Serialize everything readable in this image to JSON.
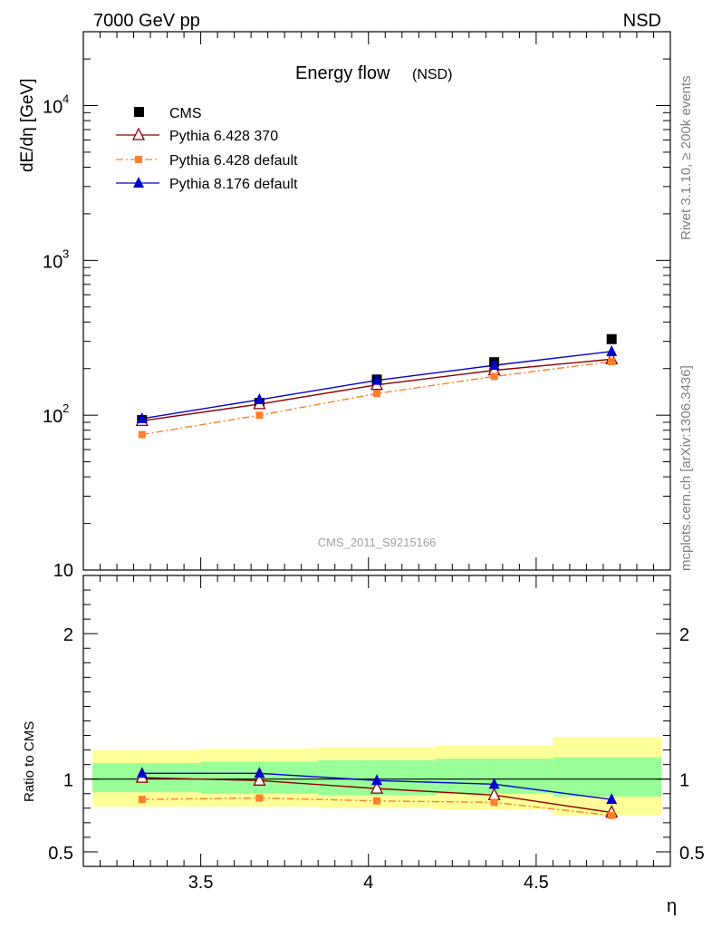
{
  "header": {
    "left": "7000 GeV pp",
    "right": "NSD"
  },
  "side_labels": {
    "rivet": "Rivet 3.1.10, ≥ 200k events",
    "mcplots": "mcplots.cern.ch [arXiv:1306.3436]"
  },
  "colors": {
    "cms": "#000000",
    "py6_370": "#8b0000",
    "py6_def": "#ff7f2a",
    "py8": "#0000cc",
    "band_inner": "#99ff99",
    "band_outer": "#ffff99"
  },
  "chart_data": [
    {
      "type": "line",
      "title": "Energy flow",
      "title_suffix": "(NSD)",
      "ylabel": "dE/dη [GeV]",
      "xlabel": "η",
      "yscale": "log",
      "xlim": [
        3.15,
        4.9
      ],
      "ylim": [
        10,
        30000
      ],
      "analysis_label": "CMS_2011_S9215166",
      "y_tick_labels": [
        {
          "value": 10,
          "base": "10",
          "exp": ""
        },
        {
          "value": 100,
          "base": "10",
          "exp": "2"
        },
        {
          "value": 1000,
          "base": "10",
          "exp": "3"
        },
        {
          "value": 10000,
          "base": "10",
          "exp": "4"
        }
      ],
      "x": [
        3.325,
        3.675,
        4.025,
        4.375,
        4.725
      ],
      "series": [
        {
          "name": "CMS",
          "key": "cms",
          "marker": "square",
          "values": [
            93,
            120,
            170,
            220,
            310
          ]
        },
        {
          "name": "Pythia 6.428 370",
          "key": "py6_370",
          "marker": "open-triangle",
          "line": "solid",
          "values": [
            92,
            118,
            157,
            195,
            230
          ]
        },
        {
          "name": "Pythia 6.428 default",
          "key": "py6_def",
          "marker": "small-square",
          "line": "dashdot",
          "values": [
            75,
            100,
            138,
            178,
            222
          ]
        },
        {
          "name": "Pythia 8.176 default",
          "key": "py8",
          "marker": "triangle",
          "line": "solid",
          "values": [
            95,
            126,
            168,
            210,
            258
          ]
        }
      ]
    },
    {
      "type": "line",
      "ylabel": "Ratio to CMS",
      "xlabel": "η",
      "xlim": [
        3.15,
        4.9
      ],
      "ylim": [
        0.4,
        2.4
      ],
      "y_tick_labels": [
        {
          "value": 0.5,
          "label": "0.5"
        },
        {
          "value": 1,
          "label": "1"
        },
        {
          "value": 2,
          "label": "2"
        }
      ],
      "x_tick_labels": [
        {
          "value": 3.5,
          "label": "3.5"
        },
        {
          "value": 4,
          "label": "4"
        },
        {
          "value": 4.5,
          "label": "4.5"
        }
      ],
      "bins": [
        {
          "lo": 3.15,
          "hi": 3.5,
          "inner": [
            0.91,
            1.11
          ],
          "outer": [
            0.81,
            1.2
          ]
        },
        {
          "lo": 3.5,
          "hi": 3.85,
          "inner": [
            0.9,
            1.12
          ],
          "outer": [
            0.81,
            1.21
          ]
        },
        {
          "lo": 3.85,
          "hi": 4.2,
          "inner": [
            0.89,
            1.13
          ],
          "outer": [
            0.8,
            1.22
          ]
        },
        {
          "lo": 4.2,
          "hi": 4.55,
          "inner": [
            0.9,
            1.14
          ],
          "outer": [
            0.79,
            1.23
          ]
        },
        {
          "lo": 4.55,
          "hi": 4.9,
          "inner": [
            0.88,
            1.15
          ],
          "outer": [
            0.75,
            1.29
          ]
        }
      ],
      "x": [
        3.325,
        3.675,
        4.025,
        4.375,
        4.725
      ],
      "series": [
        {
          "name": "Pythia 6.428 370",
          "key": "py6_370",
          "marker": "open-triangle",
          "line": "solid",
          "values": [
            1.01,
            0.99,
            0.935,
            0.89,
            0.77
          ]
        },
        {
          "name": "Pythia 6.428 default",
          "key": "py6_def",
          "marker": "small-square",
          "line": "dashdot",
          "values": [
            0.86,
            0.87,
            0.85,
            0.84,
            0.75
          ]
        },
        {
          "name": "Pythia 8.176 default",
          "key": "py8",
          "marker": "triangle",
          "line": "solid",
          "values": [
            1.04,
            1.04,
            0.99,
            0.965,
            0.86
          ]
        }
      ]
    }
  ]
}
